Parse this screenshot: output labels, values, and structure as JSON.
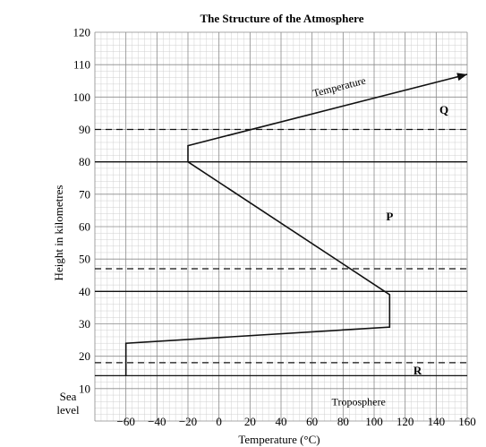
{
  "chart_data": {
    "type": "line",
    "title": "The Structure of the Atmosphere",
    "xlabel": "Temperature (°C)",
    "ylabel": "Height in kilometres",
    "xlim": [
      -80,
      160
    ],
    "ylim": [
      0,
      120
    ],
    "x_ticks": [
      -60,
      -40,
      -20,
      0,
      20,
      40,
      60,
      80,
      100,
      120,
      140,
      160
    ],
    "y_ticks": [
      10,
      20,
      30,
      40,
      50,
      60,
      70,
      80,
      90,
      100,
      110,
      120
    ],
    "y_base_label": [
      "Sea",
      "level"
    ],
    "grid": true,
    "series": [
      {
        "name": "Temperature",
        "x": [
          -60,
          -60,
          110,
          110,
          -20,
          -20,
          160
        ],
        "y": [
          14,
          24,
          29,
          39,
          80,
          85,
          107
        ]
      }
    ],
    "boundaries": [
      {
        "y": 14,
        "style": "solid"
      },
      {
        "y": 18,
        "style": "dashed"
      },
      {
        "y": 40,
        "style": "solid"
      },
      {
        "y": 47,
        "style": "dashed"
      },
      {
        "y": 80,
        "style": "solid"
      },
      {
        "y": 90,
        "style": "dashed"
      }
    ],
    "annotations": [
      {
        "text": "Troposphere",
        "x": 90,
        "y": 6
      },
      {
        "text": "R",
        "x": 128,
        "y": 15.5
      },
      {
        "text": "P",
        "x": 110,
        "y": 63
      },
      {
        "text": "Q",
        "x": 145,
        "y": 96
      }
    ]
  }
}
